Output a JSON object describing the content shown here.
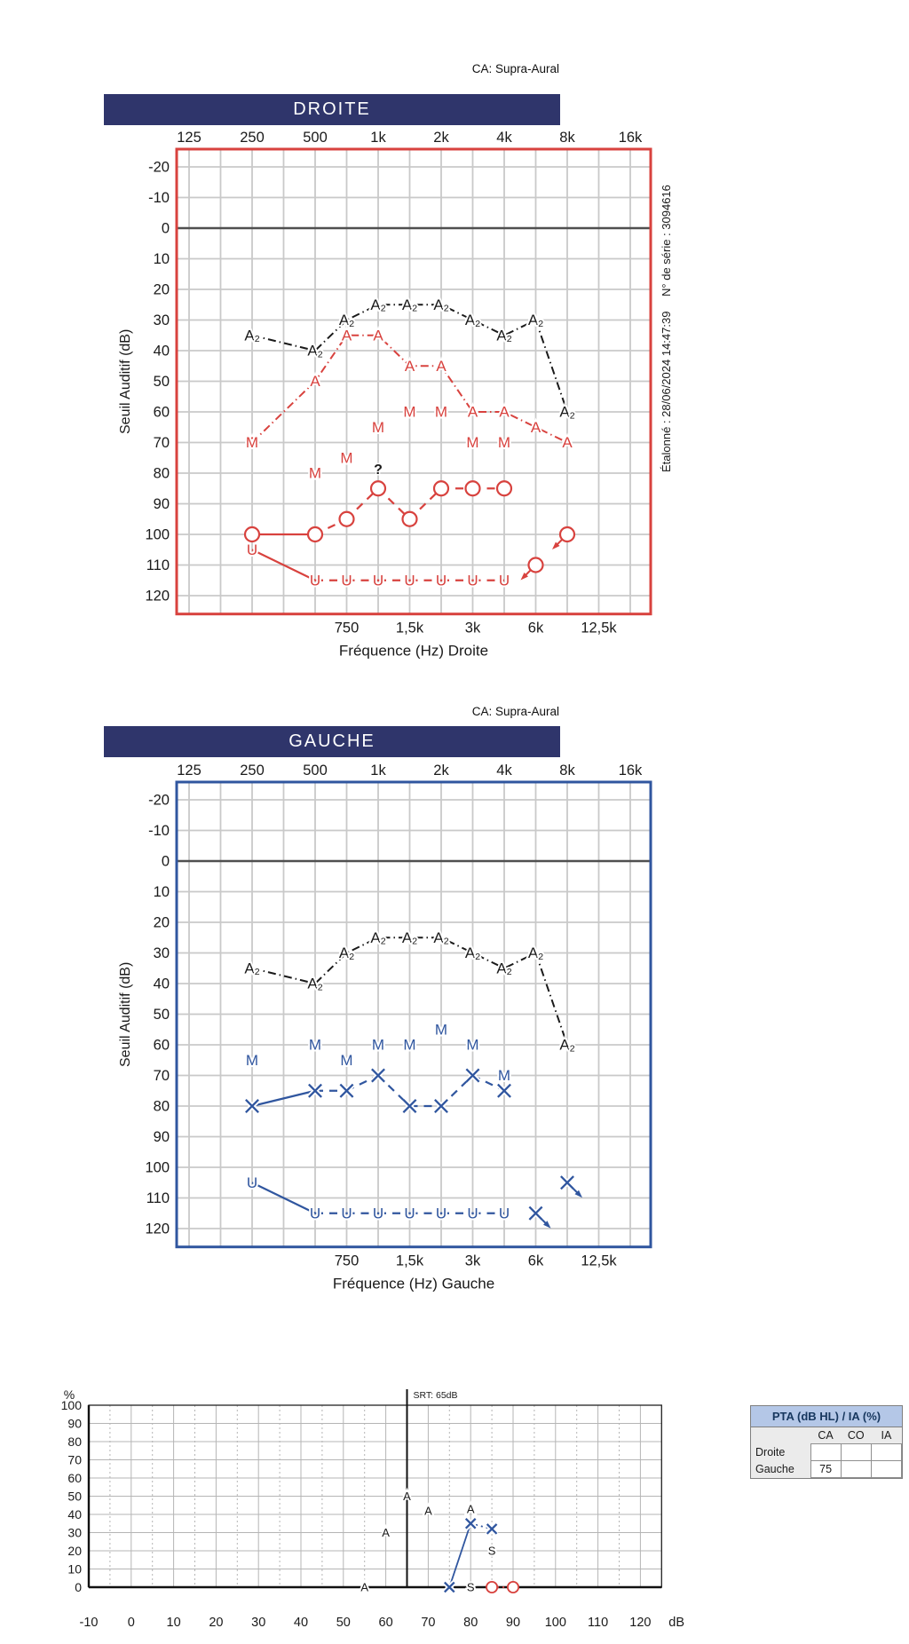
{
  "ca_label": "CA: Supra-Aural",
  "colors": {
    "red": "#d8423e",
    "blue": "#30569f",
    "black": "#1a1a1a",
    "navy_bar": "#2f356b",
    "grid": "#c9c9c9",
    "zero_line": "#4f4f4f",
    "speech_grid": "#b5b5b5",
    "table_header_bg": "#b4c7e7",
    "table_header_text": "#17375e"
  },
  "chart_data": [
    {
      "type": "line",
      "id": "droite",
      "title": "DROITE",
      "xlabel": "Fréquence (Hz) Droite",
      "ylabel": "Seuil Auditif (dB)",
      "x_top_labels": [
        "125",
        "250",
        "500",
        "1k",
        "2k",
        "4k",
        "8k",
        "16k"
      ],
      "x_bottom_labels": [
        "750",
        "1,5k",
        "3k",
        "6k",
        "12,5k"
      ],
      "y_ticks": [
        -20,
        -10,
        0,
        10,
        20,
        30,
        40,
        50,
        60,
        70,
        80,
        90,
        100,
        110,
        120
      ],
      "ylim": [
        -25,
        125
      ],
      "grid": true,
      "border_color_key": "red",
      "side_note_serial": "N° de série : 3094616",
      "side_note_calibration": "Étalonné : 28/06/2024 14:47:39",
      "series": [
        {
          "name": "aided-binaural-a2",
          "symbol": "A2",
          "color_key": "black",
          "line": "dashdot",
          "points": [
            [
              "250",
              35
            ],
            [
              "500",
              40
            ],
            [
              "750",
              30
            ],
            [
              "1k",
              25
            ],
            [
              "1.5k",
              25
            ],
            [
              "2k",
              25
            ],
            [
              "3k",
              30
            ],
            [
              "4k",
              35
            ],
            [
              "6k",
              30
            ],
            [
              "8k",
              60
            ]
          ]
        },
        {
          "name": "aided-right-a",
          "symbol": "A",
          "color_key": "red",
          "line": "dashdot",
          "points": [
            [
              "250",
              70
            ],
            [
              "500",
              50
            ],
            [
              "750",
              35
            ],
            [
              "1k",
              35
            ],
            [
              "1.5k",
              45
            ],
            [
              "2k",
              45
            ],
            [
              "3k",
              60
            ],
            [
              "4k",
              60
            ],
            [
              "6k",
              65
            ],
            [
              "8k",
              70
            ]
          ]
        },
        {
          "name": "masked-right-m",
          "symbol": "M",
          "color_key": "red",
          "line": "none",
          "points": [
            [
              "250",
              70
            ],
            [
              "500",
              80
            ],
            [
              "750",
              75
            ],
            [
              "1k",
              65
            ],
            [
              "1.5k",
              60
            ],
            [
              "2k",
              60
            ],
            [
              "3k",
              70
            ],
            [
              "4k",
              70
            ]
          ]
        },
        {
          "name": "air-conduction-right-o",
          "symbol": "O",
          "color_key": "red",
          "line": "mixed",
          "points": [
            [
              "250",
              100
            ],
            [
              "500",
              100
            ],
            [
              "750",
              95
            ],
            [
              "1k",
              85
            ],
            [
              "1.5k",
              95
            ],
            [
              "2k",
              85
            ],
            [
              "3k",
              85
            ],
            [
              "4k",
              85
            ]
          ],
          "no_response": [
            [
              "6k",
              110
            ],
            [
              "8k",
              100
            ]
          ],
          "nr_dir": "left"
        },
        {
          "name": "ucl-right-u",
          "symbol": "U",
          "color_key": "red",
          "line": "mixed",
          "points": [
            [
              "250",
              105
            ],
            [
              "500",
              115
            ],
            [
              "750",
              115
            ],
            [
              "1k",
              115
            ],
            [
              "1.5k",
              115
            ],
            [
              "2k",
              115
            ],
            [
              "3k",
              115
            ],
            [
              "4k",
              115
            ]
          ]
        }
      ],
      "annotations": [
        {
          "text": "?",
          "f": "1k",
          "db": 79,
          "color_key": "black"
        }
      ]
    },
    {
      "type": "line",
      "id": "gauche",
      "title": "GAUCHE",
      "xlabel": "Fréquence (Hz) Gauche",
      "ylabel": "Seuil Auditif (dB)",
      "x_top_labels": [
        "125",
        "250",
        "500",
        "1k",
        "2k",
        "4k",
        "8k",
        "16k"
      ],
      "x_bottom_labels": [
        "750",
        "1,5k",
        "3k",
        "6k",
        "12,5k"
      ],
      "y_ticks": [
        -20,
        -10,
        0,
        10,
        20,
        30,
        40,
        50,
        60,
        70,
        80,
        90,
        100,
        110,
        120
      ],
      "ylim": [
        -25,
        125
      ],
      "grid": true,
      "border_color_key": "blue",
      "series": [
        {
          "name": "aided-binaural-a2",
          "symbol": "A2",
          "color_key": "black",
          "line": "dashdot",
          "points": [
            [
              "250",
              35
            ],
            [
              "500",
              40
            ],
            [
              "750",
              30
            ],
            [
              "1k",
              25
            ],
            [
              "1.5k",
              25
            ],
            [
              "2k",
              25
            ],
            [
              "3k",
              30
            ],
            [
              "4k",
              35
            ],
            [
              "6k",
              30
            ],
            [
              "8k",
              60
            ]
          ]
        },
        {
          "name": "masked-left-m",
          "symbol": "M",
          "color_key": "blue",
          "line": "none",
          "points": [
            [
              "250",
              65
            ],
            [
              "500",
              60
            ],
            [
              "750",
              65
            ],
            [
              "1k",
              60
            ],
            [
              "1.5k",
              60
            ],
            [
              "2k",
              55
            ],
            [
              "3k",
              60
            ],
            [
              "4k",
              70
            ]
          ]
        },
        {
          "name": "air-conduction-left-x",
          "symbol": "X",
          "color_key": "blue",
          "line": "mixed",
          "points": [
            [
              "250",
              80
            ],
            [
              "500",
              75
            ],
            [
              "750",
              75
            ],
            [
              "1k",
              70
            ],
            [
              "1.5k",
              80
            ],
            [
              "2k",
              80
            ],
            [
              "3k",
              70
            ],
            [
              "4k",
              75
            ]
          ],
          "no_response": [
            [
              "6k",
              115
            ],
            [
              "8k",
              105
            ]
          ],
          "nr_dir": "right"
        },
        {
          "name": "ucl-left-u",
          "symbol": "U",
          "color_key": "blue",
          "line": "mixed",
          "points": [
            [
              "250",
              105
            ],
            [
              "500",
              115
            ],
            [
              "750",
              115
            ],
            [
              "1k",
              115
            ],
            [
              "1.5k",
              115
            ],
            [
              "2k",
              115
            ],
            [
              "3k",
              115
            ],
            [
              "4k",
              115
            ]
          ]
        }
      ],
      "annotations": []
    },
    {
      "type": "scatter",
      "id": "speech",
      "y_unit": "%",
      "x_unit": "dB",
      "srt_label": "SRT: 65dB",
      "srt_db": 65,
      "x_ticks": [
        -10,
        0,
        10,
        20,
        30,
        40,
        50,
        60,
        70,
        80,
        90,
        100,
        110,
        120
      ],
      "y_ticks": [
        0,
        10,
        20,
        30,
        40,
        50,
        60,
        70,
        80,
        90,
        100
      ],
      "xlim": [
        -10,
        125
      ],
      "ylim": [
        0,
        100
      ],
      "grid": true,
      "series": [
        {
          "name": "speech-aided-a",
          "symbol": "A",
          "color_key": "black",
          "line": "none",
          "points": [
            [
              55,
              0
            ],
            [
              60,
              30
            ],
            [
              65,
              50
            ],
            [
              70,
              42
            ],
            [
              80,
              43
            ]
          ]
        },
        {
          "name": "speech-left-x",
          "symbol": "X",
          "color_key": "blue",
          "line": "mixed",
          "points": [
            [
              75,
              0
            ],
            [
              80,
              35
            ],
            [
              85,
              32
            ]
          ]
        },
        {
          "name": "speech-s",
          "symbol": "S",
          "color_key": "black",
          "line": "none",
          "points": [
            [
              80,
              0
            ],
            [
              85,
              20
            ]
          ]
        },
        {
          "name": "speech-right-o",
          "symbol": "O",
          "color_key": "red",
          "line": "dot",
          "points": [
            [
              85,
              0
            ],
            [
              90,
              0
            ]
          ]
        }
      ]
    }
  ],
  "pta_table": {
    "title": "PTA (dB HL) / IA (%)",
    "columns": [
      "CA",
      "CO",
      "IA"
    ],
    "rows": [
      {
        "label": "Droite",
        "values": [
          "",
          "",
          ""
        ]
      },
      {
        "label": "Gauche",
        "values": [
          "75",
          "",
          ""
        ]
      }
    ]
  }
}
